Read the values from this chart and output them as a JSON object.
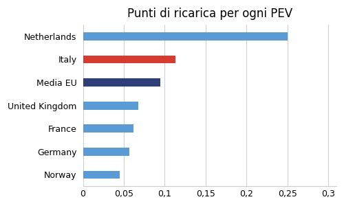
{
  "title": "Punti di ricarica per ogni PEV",
  "categories": [
    "Norway",
    "Germany",
    "France",
    "United Kingdom",
    "Media EU",
    "Italy",
    "Netherlands"
  ],
  "values": [
    0.045,
    0.057,
    0.062,
    0.068,
    0.095,
    0.113,
    0.25
  ],
  "colors": [
    "#5b9bd5",
    "#5b9bd5",
    "#5b9bd5",
    "#5b9bd5",
    "#2e3f7a",
    "#d63b2f",
    "#5b9bd5"
  ],
  "xlim": [
    0,
    0.31
  ],
  "xticks": [
    0,
    0.05,
    0.1,
    0.15,
    0.2,
    0.25,
    0.3
  ],
  "xtick_labels": [
    "0",
    "0,05",
    "0,1",
    "0,15",
    "0,2",
    "0,25",
    "0,3"
  ],
  "title_fontsize": 12,
  "label_fontsize": 9,
  "tick_fontsize": 9,
  "bar_height": 0.35
}
